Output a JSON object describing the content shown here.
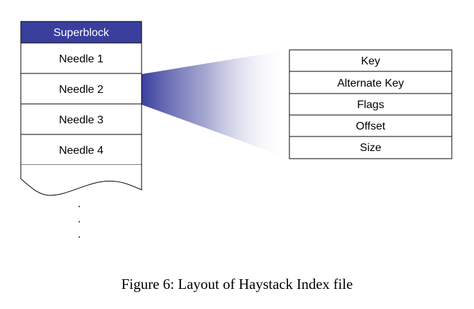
{
  "file_column": {
    "header": "Superblock",
    "needles": [
      "Needle 1",
      "Needle 2",
      "Needle 3",
      "Needle 4"
    ],
    "continuation": "."
  },
  "needle_detail": {
    "fields": [
      "Key",
      "Alternate Key",
      "Flags",
      "Offset",
      "Size"
    ]
  },
  "caption": "Figure 6: Layout of Haystack Index file",
  "colors": {
    "header_fill": "#3a3f9e",
    "fan_color": "#3a3f9e",
    "border": "#000000"
  }
}
